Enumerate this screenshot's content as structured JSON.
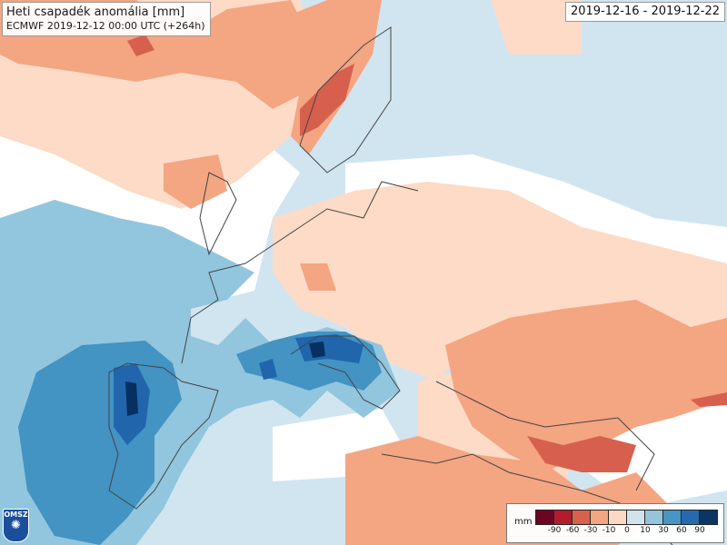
{
  "title": "Heti csapadék anomália [mm]",
  "subtitle": "ECMWF 2019-12-12 00:00 UTC (+264h)",
  "date_range": "2019-12-16 - 2019-12-22",
  "legend": {
    "unit": "mm",
    "colors": [
      "#67001f",
      "#b2182b",
      "#d6604d",
      "#f4a582",
      "#fddbc7",
      "#d1e5f0",
      "#92c5de",
      "#4393c3",
      "#2166ac",
      "#053061"
    ],
    "ticks": [
      "-90",
      "-60",
      "-30",
      "-10",
      "0",
      "10",
      "30",
      "60",
      "90"
    ]
  },
  "logo": {
    "text": "OMSZ"
  }
}
